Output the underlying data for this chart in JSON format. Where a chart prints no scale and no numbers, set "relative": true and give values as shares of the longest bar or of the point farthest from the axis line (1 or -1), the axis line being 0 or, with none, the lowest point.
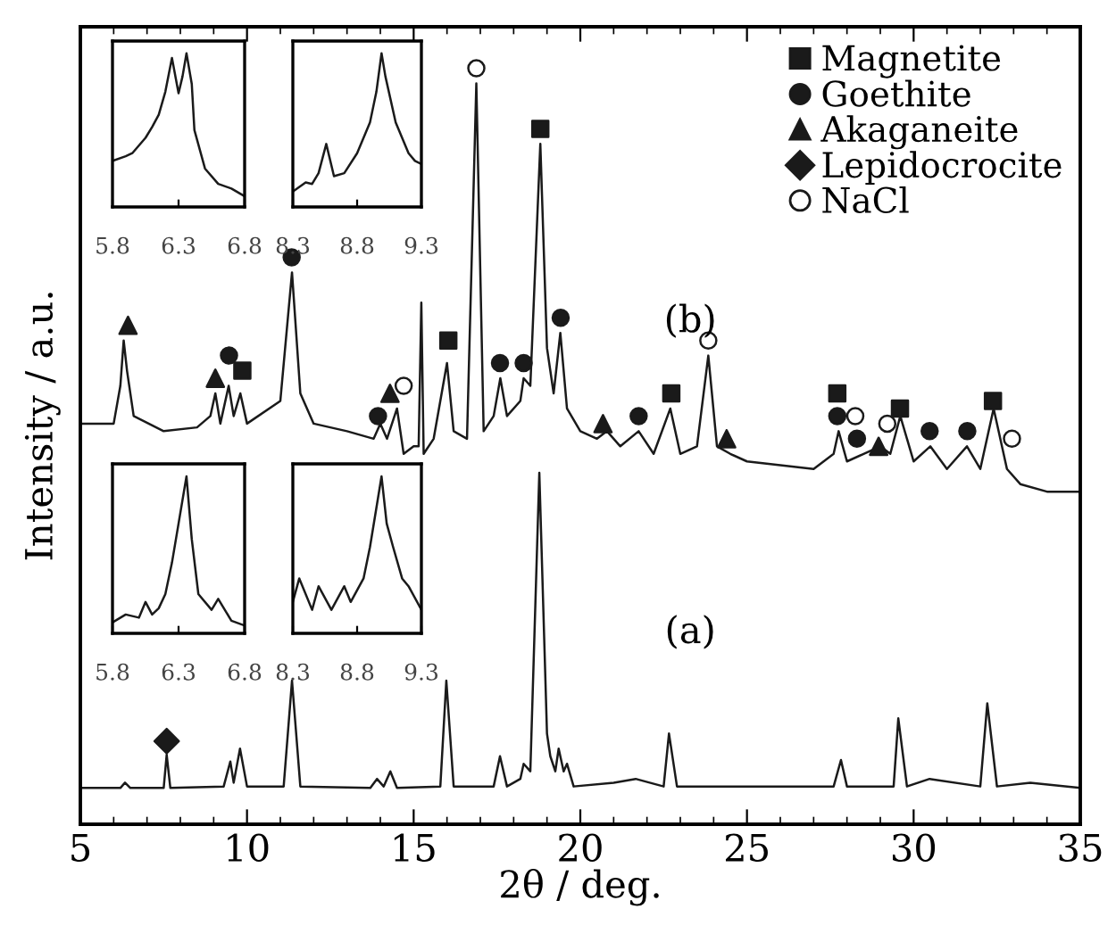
{
  "chart_data": [
    {
      "type": "line",
      "relative": true,
      "xlabel": "2θ / deg.",
      "ylabel": "Intensity / a.u.",
      "xlim": [
        5,
        35
      ],
      "xticks": [
        5,
        10,
        15,
        20,
        25,
        30,
        35
      ],
      "legend": "top right",
      "grid": false,
      "annotations": [
        "(b)",
        "(a)"
      ],
      "series": [
        {
          "color": "#1a1a1a",
          "x": [
            5.0,
            6.0,
            6.2,
            6.3,
            6.4,
            6.6,
            7.5,
            8.5,
            8.9,
            9.05,
            9.2,
            9.45,
            9.6,
            9.8,
            10.0,
            11.0,
            11.35,
            11.6,
            12.0,
            13.0,
            13.8,
            14.0,
            14.2,
            14.5,
            14.7,
            15.0,
            15.15,
            15.23,
            15.3,
            15.6,
            16.0,
            16.2,
            16.6,
            16.88,
            17.1,
            17.4,
            17.6,
            17.8,
            18.2,
            18.3,
            18.5,
            18.8,
            19.0,
            19.2,
            19.4,
            19.6,
            20.0,
            20.5,
            20.8,
            21.2,
            21.75,
            22.2,
            22.7,
            23.0,
            23.5,
            23.84,
            24.1,
            24.5,
            25.0,
            26.0,
            27.0,
            27.6,
            27.75,
            28.0,
            28.5,
            29.0,
            29.3,
            29.6,
            30.0,
            30.5,
            31.0,
            31.6,
            32.0,
            32.4,
            32.8,
            33.2,
            34.0,
            35.0
          ],
          "values": [
            0.53,
            0.53,
            0.58,
            0.64,
            0.6,
            0.54,
            0.52,
            0.525,
            0.54,
            0.57,
            0.53,
            0.58,
            0.54,
            0.57,
            0.53,
            0.56,
            0.73,
            0.57,
            0.53,
            0.52,
            0.51,
            0.53,
            0.51,
            0.55,
            0.49,
            0.5,
            0.5,
            0.69,
            0.49,
            0.51,
            0.61,
            0.52,
            0.51,
            0.98,
            0.52,
            0.54,
            0.59,
            0.54,
            0.56,
            0.59,
            0.58,
            0.9,
            0.63,
            0.57,
            0.65,
            0.55,
            0.52,
            0.51,
            0.52,
            0.5,
            0.52,
            0.49,
            0.55,
            0.49,
            0.5,
            0.62,
            0.5,
            0.49,
            0.48,
            0.475,
            0.47,
            0.49,
            0.52,
            0.48,
            0.49,
            0.5,
            0.49,
            0.54,
            0.48,
            0.5,
            0.47,
            0.5,
            0.47,
            0.55,
            0.47,
            0.45,
            0.44,
            0.44
          ]
        },
        {
          "color": "#1a1a1a",
          "x": [
            5.0,
            6.2,
            6.34,
            6.5,
            7.5,
            7.59,
            7.7,
            9.3,
            9.5,
            9.6,
            9.79,
            10.0,
            11.1,
            11.35,
            11.6,
            13.7,
            13.9,
            14.1,
            14.3,
            14.5,
            15.8,
            15.98,
            16.2,
            17.4,
            17.59,
            17.8,
            18.2,
            18.3,
            18.5,
            18.77,
            19.0,
            19.1,
            19.25,
            19.35,
            19.5,
            19.6,
            19.8,
            21.0,
            21.66,
            22.5,
            22.66,
            22.9,
            27.6,
            27.82,
            28.0,
            29.4,
            29.54,
            29.8,
            30.48,
            32.0,
            32.21,
            32.5,
            33.5,
            35.0
          ],
          "values": [
            0.048,
            0.048,
            0.055,
            0.048,
            0.048,
            0.092,
            0.048,
            0.05,
            0.083,
            0.055,
            0.1,
            0.05,
            0.05,
            0.19,
            0.05,
            0.048,
            0.06,
            0.05,
            0.07,
            0.048,
            0.05,
            0.19,
            0.05,
            0.05,
            0.09,
            0.05,
            0.06,
            0.08,
            0.07,
            0.465,
            0.12,
            0.09,
            0.07,
            0.1,
            0.07,
            0.08,
            0.05,
            0.055,
            0.06,
            0.05,
            0.12,
            0.05,
            0.05,
            0.085,
            0.05,
            0.05,
            0.14,
            0.05,
            0.06,
            0.05,
            0.16,
            0.05,
            0.055,
            0.048
          ]
        },
        {
          "type": "scatter",
          "name": "Magnetite",
          "marker": "square",
          "color": "#1a1a1a",
          "x": [
            9.86,
            16.04,
            18.8,
            22.73,
            27.71,
            29.59,
            32.38
          ],
          "values": [
            0.6,
            0.64,
            0.92,
            0.57,
            0.57,
            0.55,
            0.56
          ]
        },
        {
          "type": "scatter",
          "name": "Goethite",
          "marker": "circle",
          "color": "#1a1a1a",
          "x": [
            9.46,
            11.34,
            13.93,
            17.59,
            18.3,
            19.41,
            21.75,
            27.71,
            28.3,
            30.48,
            31.61
          ],
          "values": [
            0.62,
            0.75,
            0.54,
            0.61,
            0.61,
            0.67,
            0.54,
            0.54,
            0.51,
            0.52,
            0.52
          ]
        },
        {
          "type": "scatter",
          "name": "Akaganeite",
          "marker": "triangle",
          "color": "#1a1a1a",
          "x": [
            6.43,
            9.05,
            14.29,
            20.68,
            24.39,
            28.95
          ],
          "values": [
            0.66,
            0.59,
            0.57,
            0.53,
            0.51,
            0.5
          ]
        },
        {
          "type": "scatter",
          "name": "Lepidocrocite",
          "marker": "diamond",
          "color": "#1a1a1a",
          "x": [
            7.59
          ],
          "values": [
            0.11
          ]
        },
        {
          "type": "scatter",
          "name": "NaCl",
          "marker": "circle",
          "color": "#ffffff",
          "x": [
            14.7,
            16.88,
            23.84,
            28.25,
            29.21,
            32.95
          ],
          "values": [
            0.58,
            1.0,
            0.64,
            0.54,
            0.53,
            0.51
          ]
        }
      ]
    },
    {
      "type": "line",
      "relative": true,
      "xlim": [
        5.8,
        6.8
      ],
      "xticks": [
        5.8,
        6.3,
        6.8
      ],
      "tick_labels": "x",
      "series": [
        {
          "color": "#1a1a1a",
          "x": [
            5.8,
            5.9,
            5.95,
            6.05,
            6.1,
            6.15,
            6.2,
            6.25,
            6.3,
            6.33,
            6.36,
            6.4,
            6.42,
            6.5,
            6.6,
            6.7,
            6.8
          ],
          "values": [
            0.3,
            0.33,
            0.35,
            0.45,
            0.52,
            0.6,
            0.75,
            0.97,
            0.74,
            0.85,
            1.0,
            0.8,
            0.5,
            0.25,
            0.15,
            0.12,
            0.07
          ]
        }
      ]
    },
    {
      "type": "line",
      "relative": true,
      "xlim": [
        8.3,
        9.3
      ],
      "xticks": [
        8.3,
        8.8,
        9.3
      ],
      "tick_labels": "x",
      "series": [
        {
          "color": "#1a1a1a",
          "x": [
            8.3,
            8.4,
            8.45,
            8.5,
            8.56,
            8.62,
            8.7,
            8.8,
            8.9,
            8.95,
            8.99,
            9.02,
            9.1,
            9.2,
            9.25,
            9.3
          ],
          "values": [
            0.1,
            0.16,
            0.15,
            0.22,
            0.41,
            0.2,
            0.22,
            0.35,
            0.55,
            0.75,
            1.0,
            0.85,
            0.55,
            0.35,
            0.3,
            0.28
          ]
        }
      ]
    },
    {
      "type": "line",
      "relative": true,
      "xlim": [
        5.8,
        6.8
      ],
      "xticks": [
        5.8,
        6.3,
        6.8
      ],
      "tick_labels": "x",
      "series": [
        {
          "color": "#1a1a1a",
          "x": [
            5.8,
            5.9,
            6.0,
            6.05,
            6.1,
            6.15,
            6.2,
            6.25,
            6.3,
            6.36,
            6.4,
            6.45,
            6.55,
            6.6,
            6.7,
            6.8
          ],
          "values": [
            0.07,
            0.12,
            0.1,
            0.2,
            0.12,
            0.16,
            0.25,
            0.45,
            0.7,
            1.0,
            0.6,
            0.25,
            0.15,
            0.22,
            0.08,
            0.05
          ]
        }
      ]
    },
    {
      "type": "line",
      "relative": true,
      "xlim": [
        8.3,
        9.3
      ],
      "xticks": [
        8.3,
        8.8,
        9.3
      ],
      "tick_labels": "x",
      "series": [
        {
          "color": "#1a1a1a",
          "x": [
            8.3,
            8.35,
            8.45,
            8.5,
            8.6,
            8.7,
            8.75,
            8.85,
            8.9,
            8.95,
            8.99,
            9.03,
            9.08,
            9.15,
            9.2,
            9.3
          ],
          "values": [
            0.2,
            0.35,
            0.15,
            0.3,
            0.15,
            0.3,
            0.2,
            0.35,
            0.55,
            0.8,
            1.0,
            0.7,
            0.55,
            0.35,
            0.3,
            0.15
          ]
        }
      ]
    }
  ]
}
